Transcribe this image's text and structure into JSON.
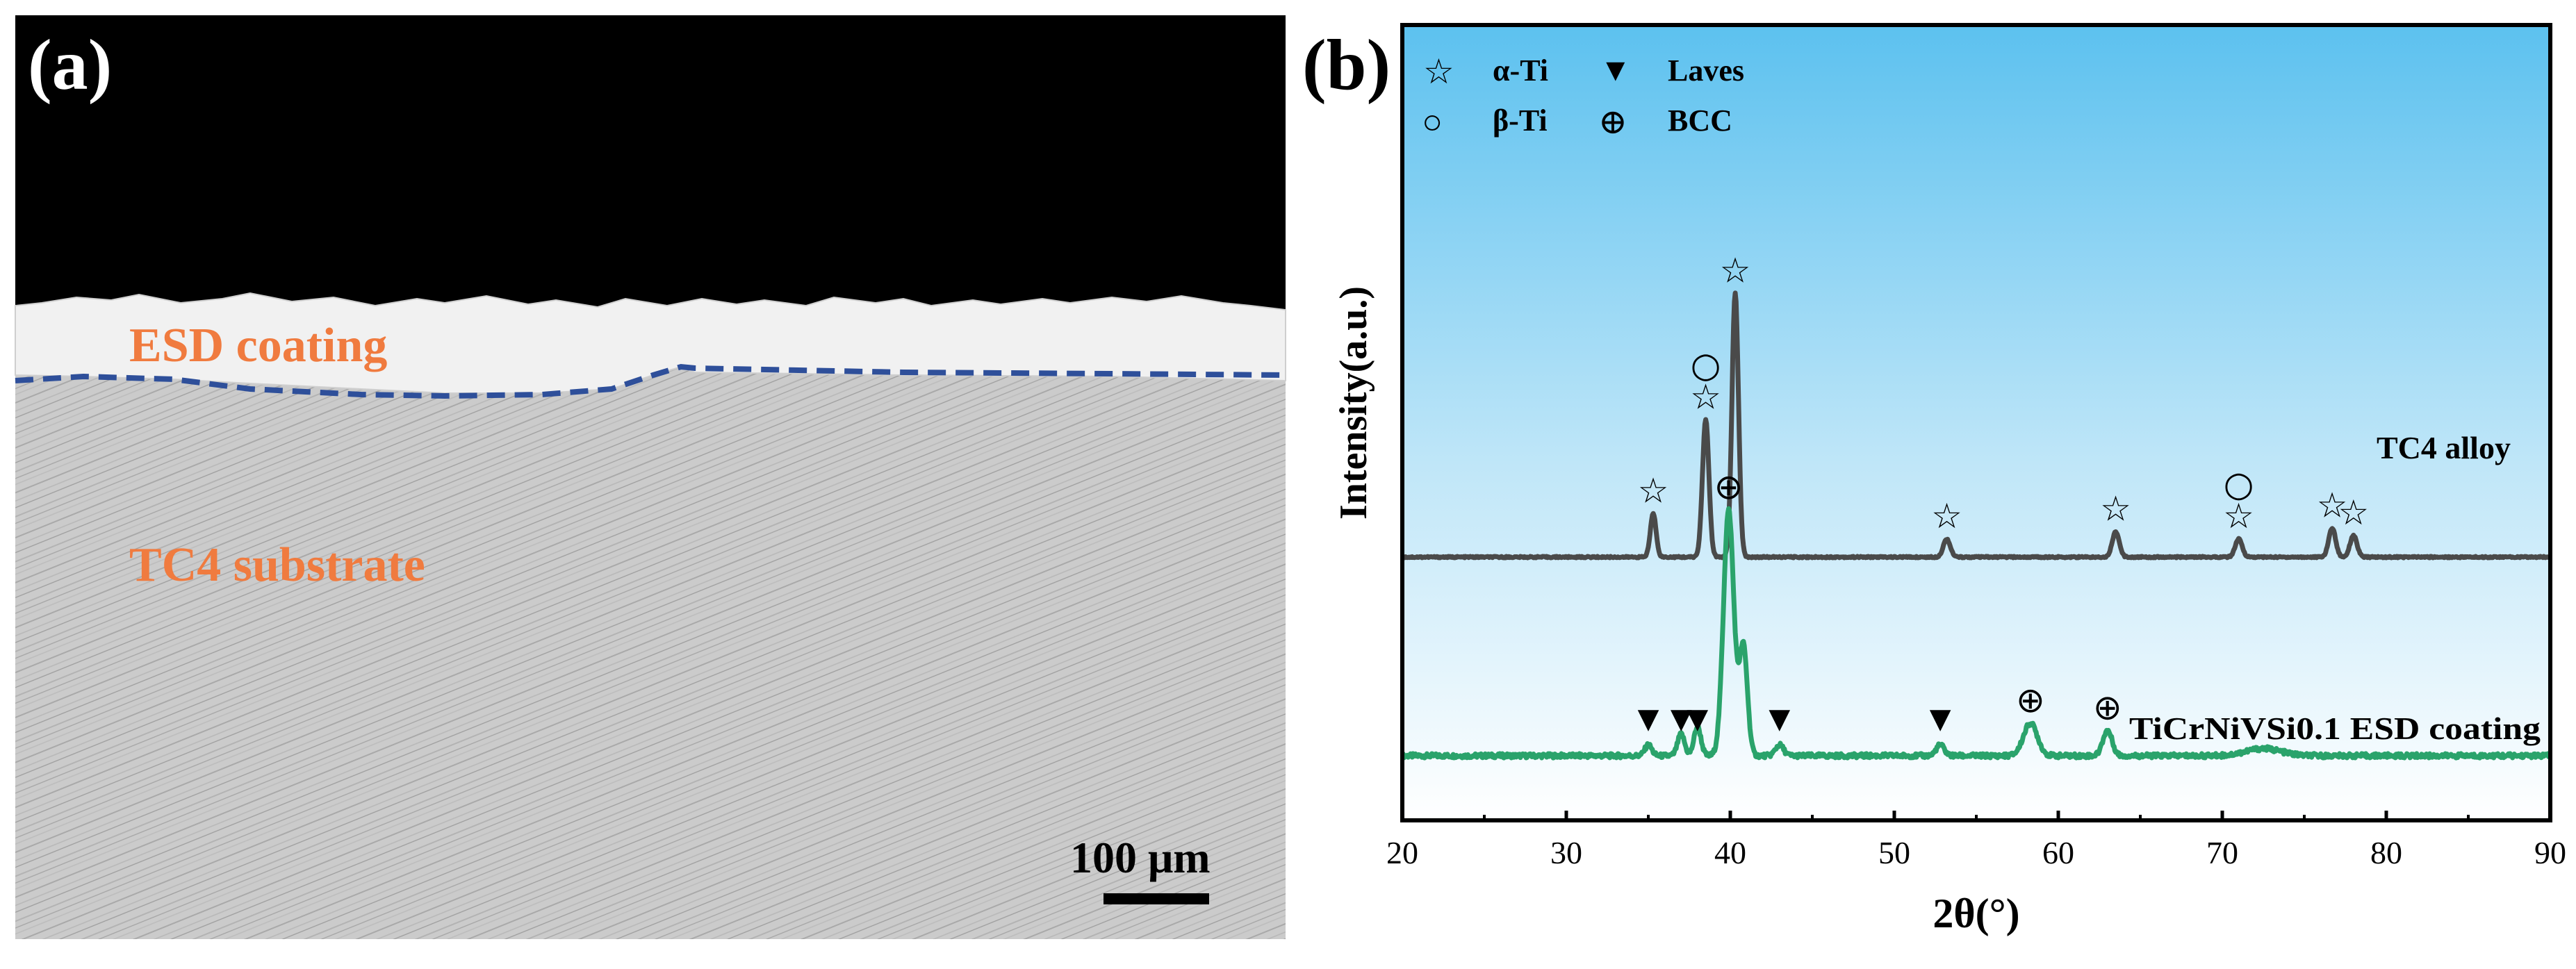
{
  "panel_a": {
    "label": "(a)",
    "coating_label": "ESD coating",
    "substrate_label": "TC4 substrate",
    "scale_bar_label": "100 μm",
    "colors": {
      "label_orange": "#f07b3f",
      "interface_blue": "#2e4f9a",
      "top_black": "#000000",
      "coating_white": "#f2f2f2",
      "substrate_gray": "#c9c9c9"
    }
  },
  "panel_b": {
    "label": "(b)",
    "legend": [
      {
        "symbol": "☆",
        "name": "α-Ti"
      },
      {
        "symbol": "▼",
        "name": "Laves"
      },
      {
        "symbol": "○",
        "name": "β-Ti"
      },
      {
        "symbol": "⊕",
        "name": "BCC"
      }
    ],
    "colors": {
      "tc4": "#4a4a4a",
      "coating": "#2aa36b",
      "bg_top": "#5dc2ef",
      "bg_bottom": "#ffffff"
    }
  },
  "chart_data": {
    "type": "line",
    "title": "",
    "xlabel": "2θ(°)",
    "ylabel": "Intensity(a.u.)",
    "xlim": [
      20,
      90
    ],
    "xticks": [
      20,
      30,
      40,
      50,
      60,
      70,
      80,
      90
    ],
    "yticks": "none (arbitrary units)",
    "series": [
      {
        "name": "TC4 alloy",
        "color": "#4a4a4a",
        "baseline": 0.55,
        "peaks": [
          {
            "x": 35.3,
            "height": 0.12,
            "width": 0.25,
            "marker": "☆"
          },
          {
            "x": 38.5,
            "height": 0.38,
            "width": 0.28,
            "marker": "☆○"
          },
          {
            "x": 40.3,
            "height": 0.73,
            "width": 0.28,
            "marker": "☆"
          },
          {
            "x": 53.2,
            "height": 0.05,
            "width": 0.3,
            "marker": "☆"
          },
          {
            "x": 63.5,
            "height": 0.07,
            "width": 0.3,
            "marker": "☆"
          },
          {
            "x": 71.0,
            "height": 0.05,
            "width": 0.3,
            "marker": "☆○"
          },
          {
            "x": 76.7,
            "height": 0.08,
            "width": 0.3,
            "marker": "☆"
          },
          {
            "x": 78.0,
            "height": 0.06,
            "width": 0.3,
            "marker": "☆"
          }
        ]
      },
      {
        "name": "TiCrNiVSi0.1 ESD coating",
        "color": "#2aa36b",
        "baseline": 0.0,
        "peaks": [
          {
            "x": 35.0,
            "height": 0.03,
            "width": 0.3,
            "marker": "▼"
          },
          {
            "x": 37.0,
            "height": 0.06,
            "width": 0.3,
            "marker": "▼"
          },
          {
            "x": 38.0,
            "height": 0.08,
            "width": 0.3,
            "marker": "▼"
          },
          {
            "x": 39.9,
            "height": 0.68,
            "width": 0.45,
            "marker": "⊕"
          },
          {
            "x": 40.8,
            "height": 0.3,
            "width": 0.35,
            "marker": ""
          },
          {
            "x": 43.0,
            "height": 0.03,
            "width": 0.35,
            "marker": "▼"
          },
          {
            "x": 52.8,
            "height": 0.03,
            "width": 0.35,
            "marker": "▼"
          },
          {
            "x": 58.3,
            "height": 0.09,
            "width": 0.6,
            "marker": "⊕"
          },
          {
            "x": 63.0,
            "height": 0.07,
            "width": 0.4,
            "marker": "⊕"
          },
          {
            "x": 72.5,
            "height": 0.02,
            "width": 1.5,
            "marker": ""
          }
        ]
      }
    ],
    "legend_labels": [
      "TC4 alloy",
      "TiCrNiVSi0.1 ESD coating"
    ]
  }
}
